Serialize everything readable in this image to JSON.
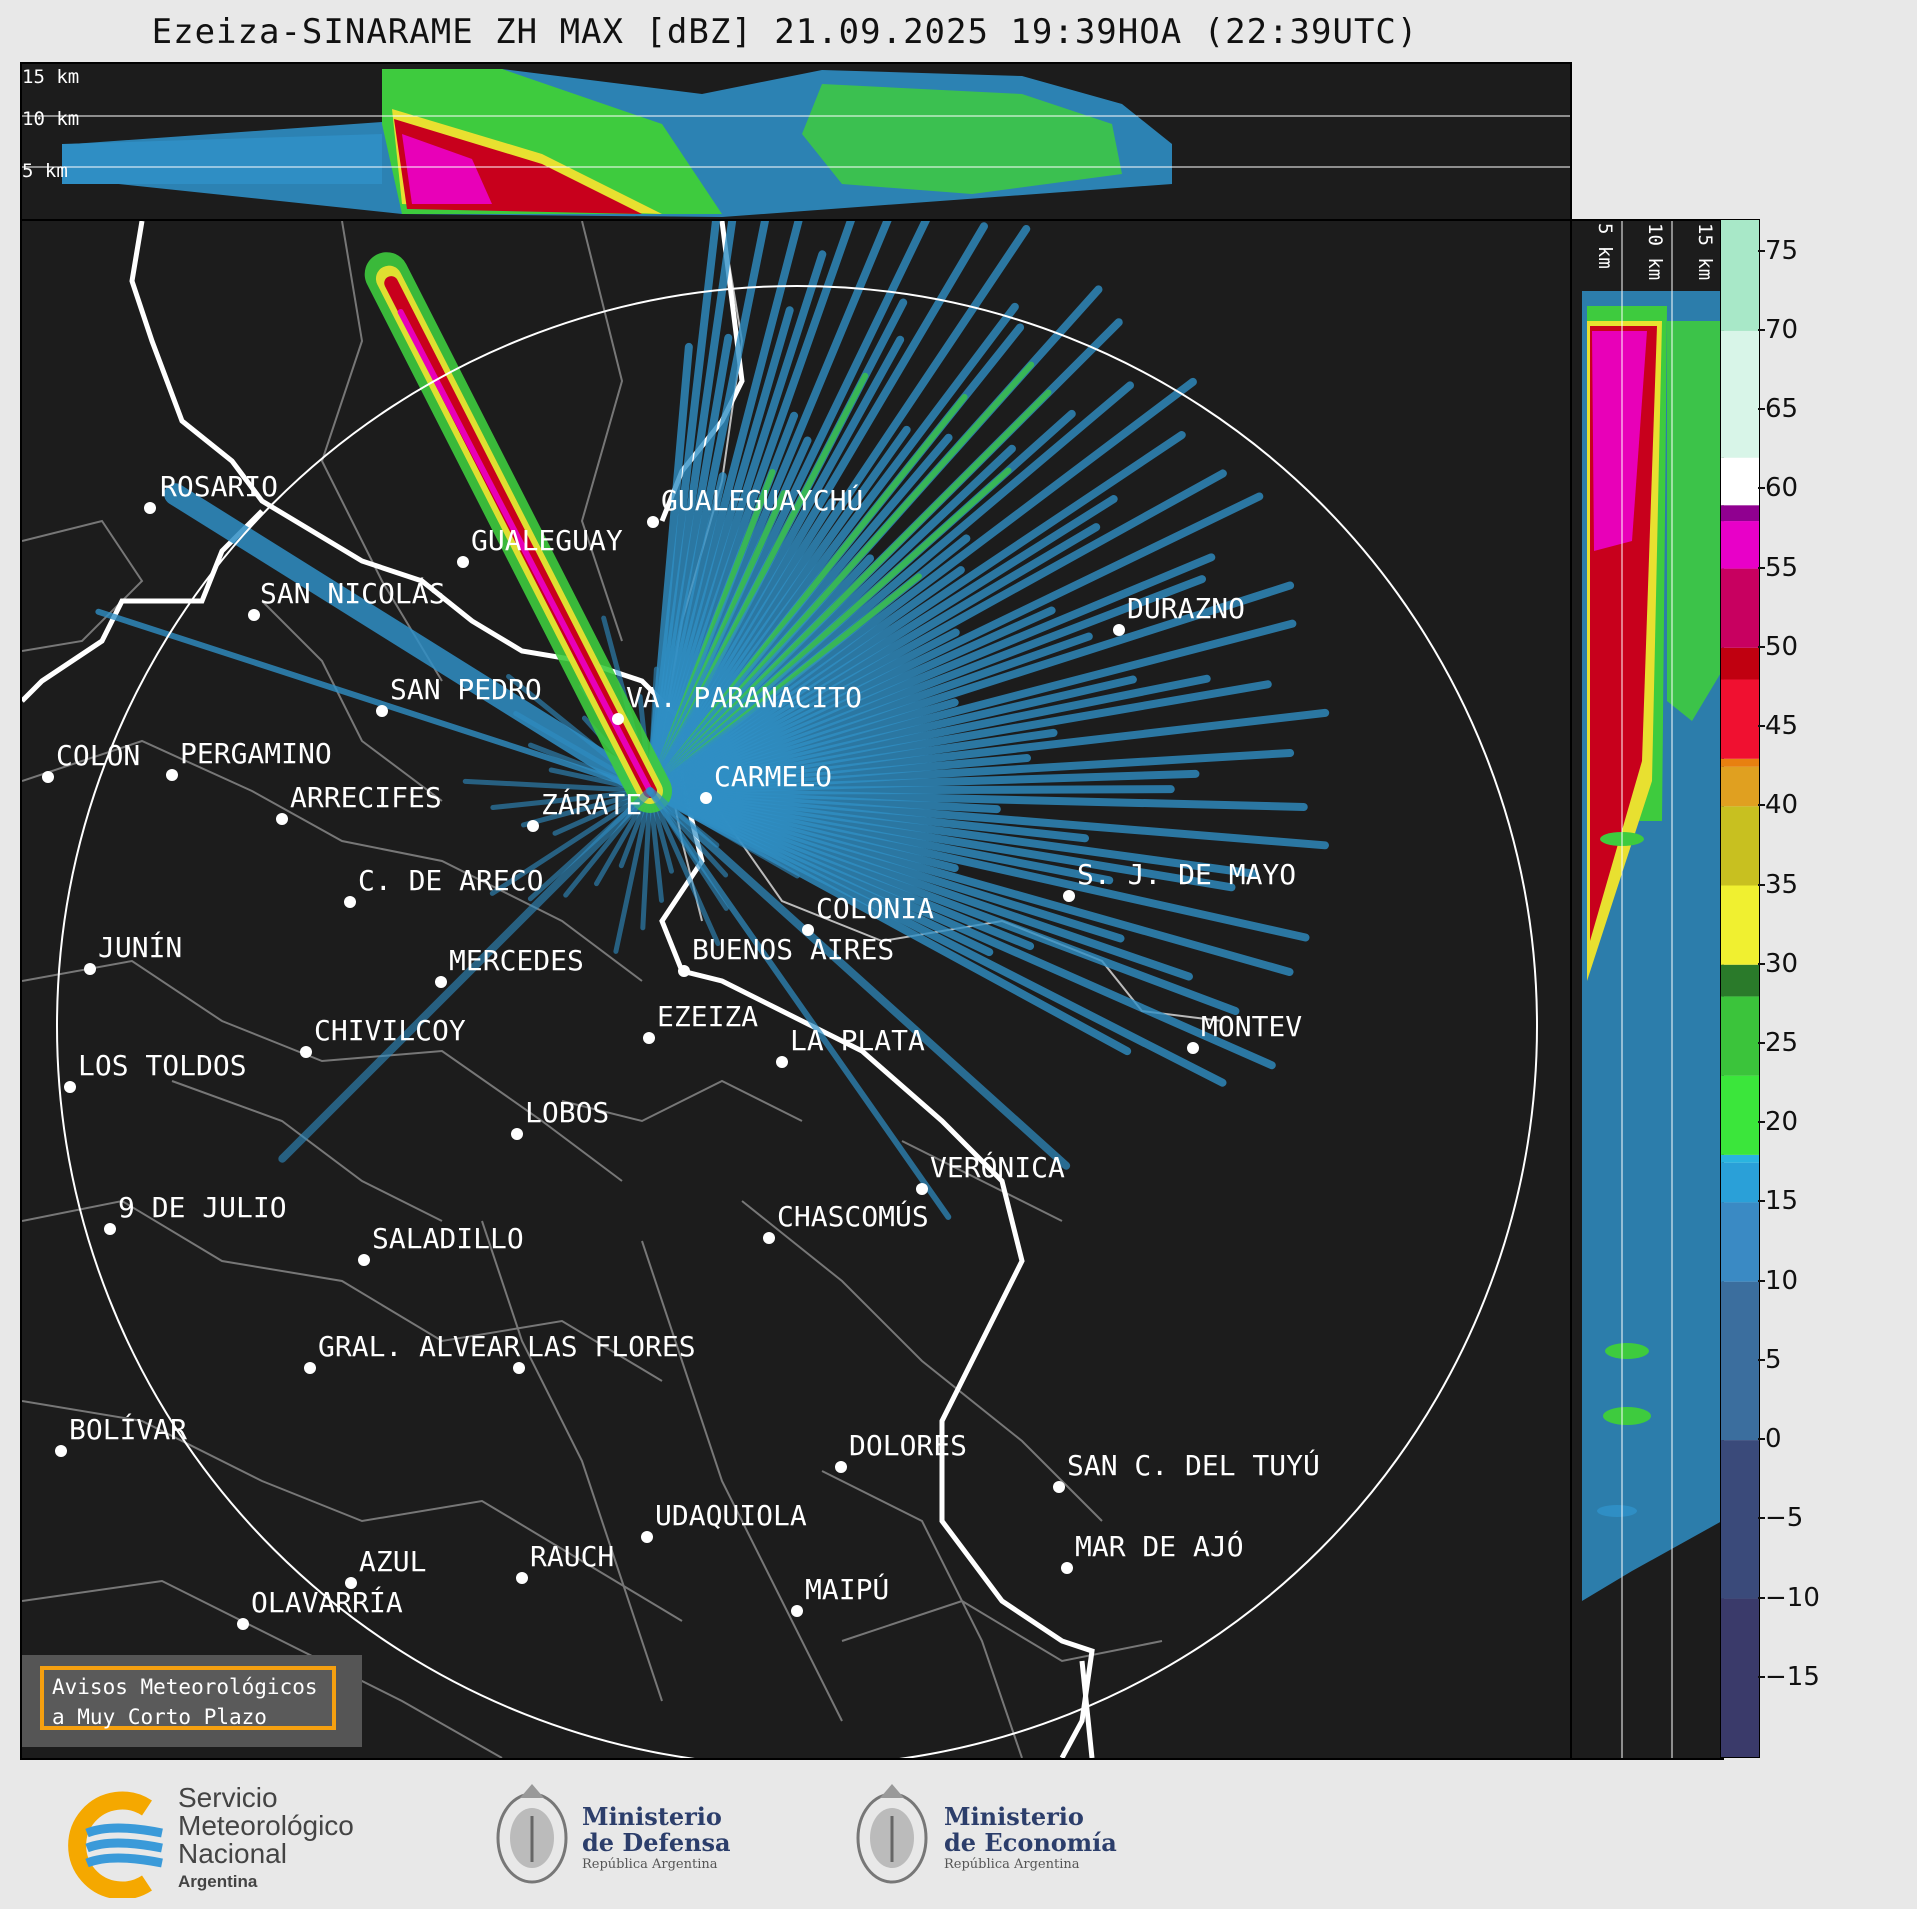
{
  "title": "Ezeiza-SINARAME ZH MAX [dBZ] 21.09.2025 19:39HOA (22:39UTC)",
  "top_panel": {
    "height_labels": [
      "15 km",
      "10 km",
      "5 km"
    ]
  },
  "side_panel": {
    "height_labels": [
      "5 km",
      "10 km",
      "15 km"
    ]
  },
  "colorbar": {
    "ticks": [
      "75",
      "70",
      "65",
      "60",
      "55",
      "50",
      "45",
      "40",
      "35",
      "30",
      "25",
      "20",
      "15",
      "10",
      "5",
      "0",
      "−5",
      "−10",
      "−15"
    ],
    "tick_values": [
      75,
      70,
      65,
      60,
      55,
      50,
      45,
      40,
      35,
      30,
      25,
      20,
      15,
      10,
      5,
      0,
      -5,
      -10,
      -15
    ],
    "range": [
      -20,
      77
    ]
  },
  "cities": [
    {
      "name": "ROSARIO"
    },
    {
      "name": "GUALEGUAYCHÚ"
    },
    {
      "name": "GUALEGUAY"
    },
    {
      "name": "SAN NICOLÁS"
    },
    {
      "name": "DURAZNO"
    },
    {
      "name": "SAN PEDRO"
    },
    {
      "name": "VA. PARANACITO"
    },
    {
      "name": "COLON"
    },
    {
      "name": "PERGAMINO"
    },
    {
      "name": "CARMELO"
    },
    {
      "name": "ARRECIFES"
    },
    {
      "name": "ZÁRATE"
    },
    {
      "name": "S. J. DE MAYO"
    },
    {
      "name": "C. DE ARECO"
    },
    {
      "name": "COLONIA"
    },
    {
      "name": "JUNÍN"
    },
    {
      "name": "BUENOS AIRES"
    },
    {
      "name": "MERCEDES"
    },
    {
      "name": "EZEIZA"
    },
    {
      "name": "MONTEV"
    },
    {
      "name": "CHIVILCOY"
    },
    {
      "name": "LA PLATA"
    },
    {
      "name": "LOS TOLDOS"
    },
    {
      "name": "LOBOS"
    },
    {
      "name": "VERÓNICA"
    },
    {
      "name": "9 DE JULIO"
    },
    {
      "name": "CHASCOMÚS"
    },
    {
      "name": "SALADILLO"
    },
    {
      "name": "GRAL. ALVEAR"
    },
    {
      "name": "LAS FLORES"
    },
    {
      "name": "BOLÍVAR"
    },
    {
      "name": "DOLORES"
    },
    {
      "name": "SAN C. DEL TUYÚ"
    },
    {
      "name": "UDAQUIOLA"
    },
    {
      "name": "MAR DE AJÓ"
    },
    {
      "name": "AZUL"
    },
    {
      "name": "RAUCH"
    },
    {
      "name": "OLAVARRÍA"
    },
    {
      "name": "MAIPÚ"
    }
  ],
  "warning": {
    "line1": "Avisos Meteorológicos",
    "line2": "a Muy Corto Plazo"
  },
  "footer": {
    "smn": {
      "line1": "Servicio",
      "line2": "Meteorológico",
      "line3": "Nacional",
      "line4": "Argentina"
    },
    "defensa": {
      "line1": "Ministerio",
      "line2": "de Defensa",
      "line3": "República Argentina"
    },
    "economia": {
      "line1": "Ministerio",
      "line2": "de Economía",
      "line3": "República Argentina"
    }
  },
  "colors": {
    "background": "#1c1c1c",
    "border_line": "#ffffff",
    "province_line": "#777777",
    "accent_warning": "#f5a010"
  }
}
